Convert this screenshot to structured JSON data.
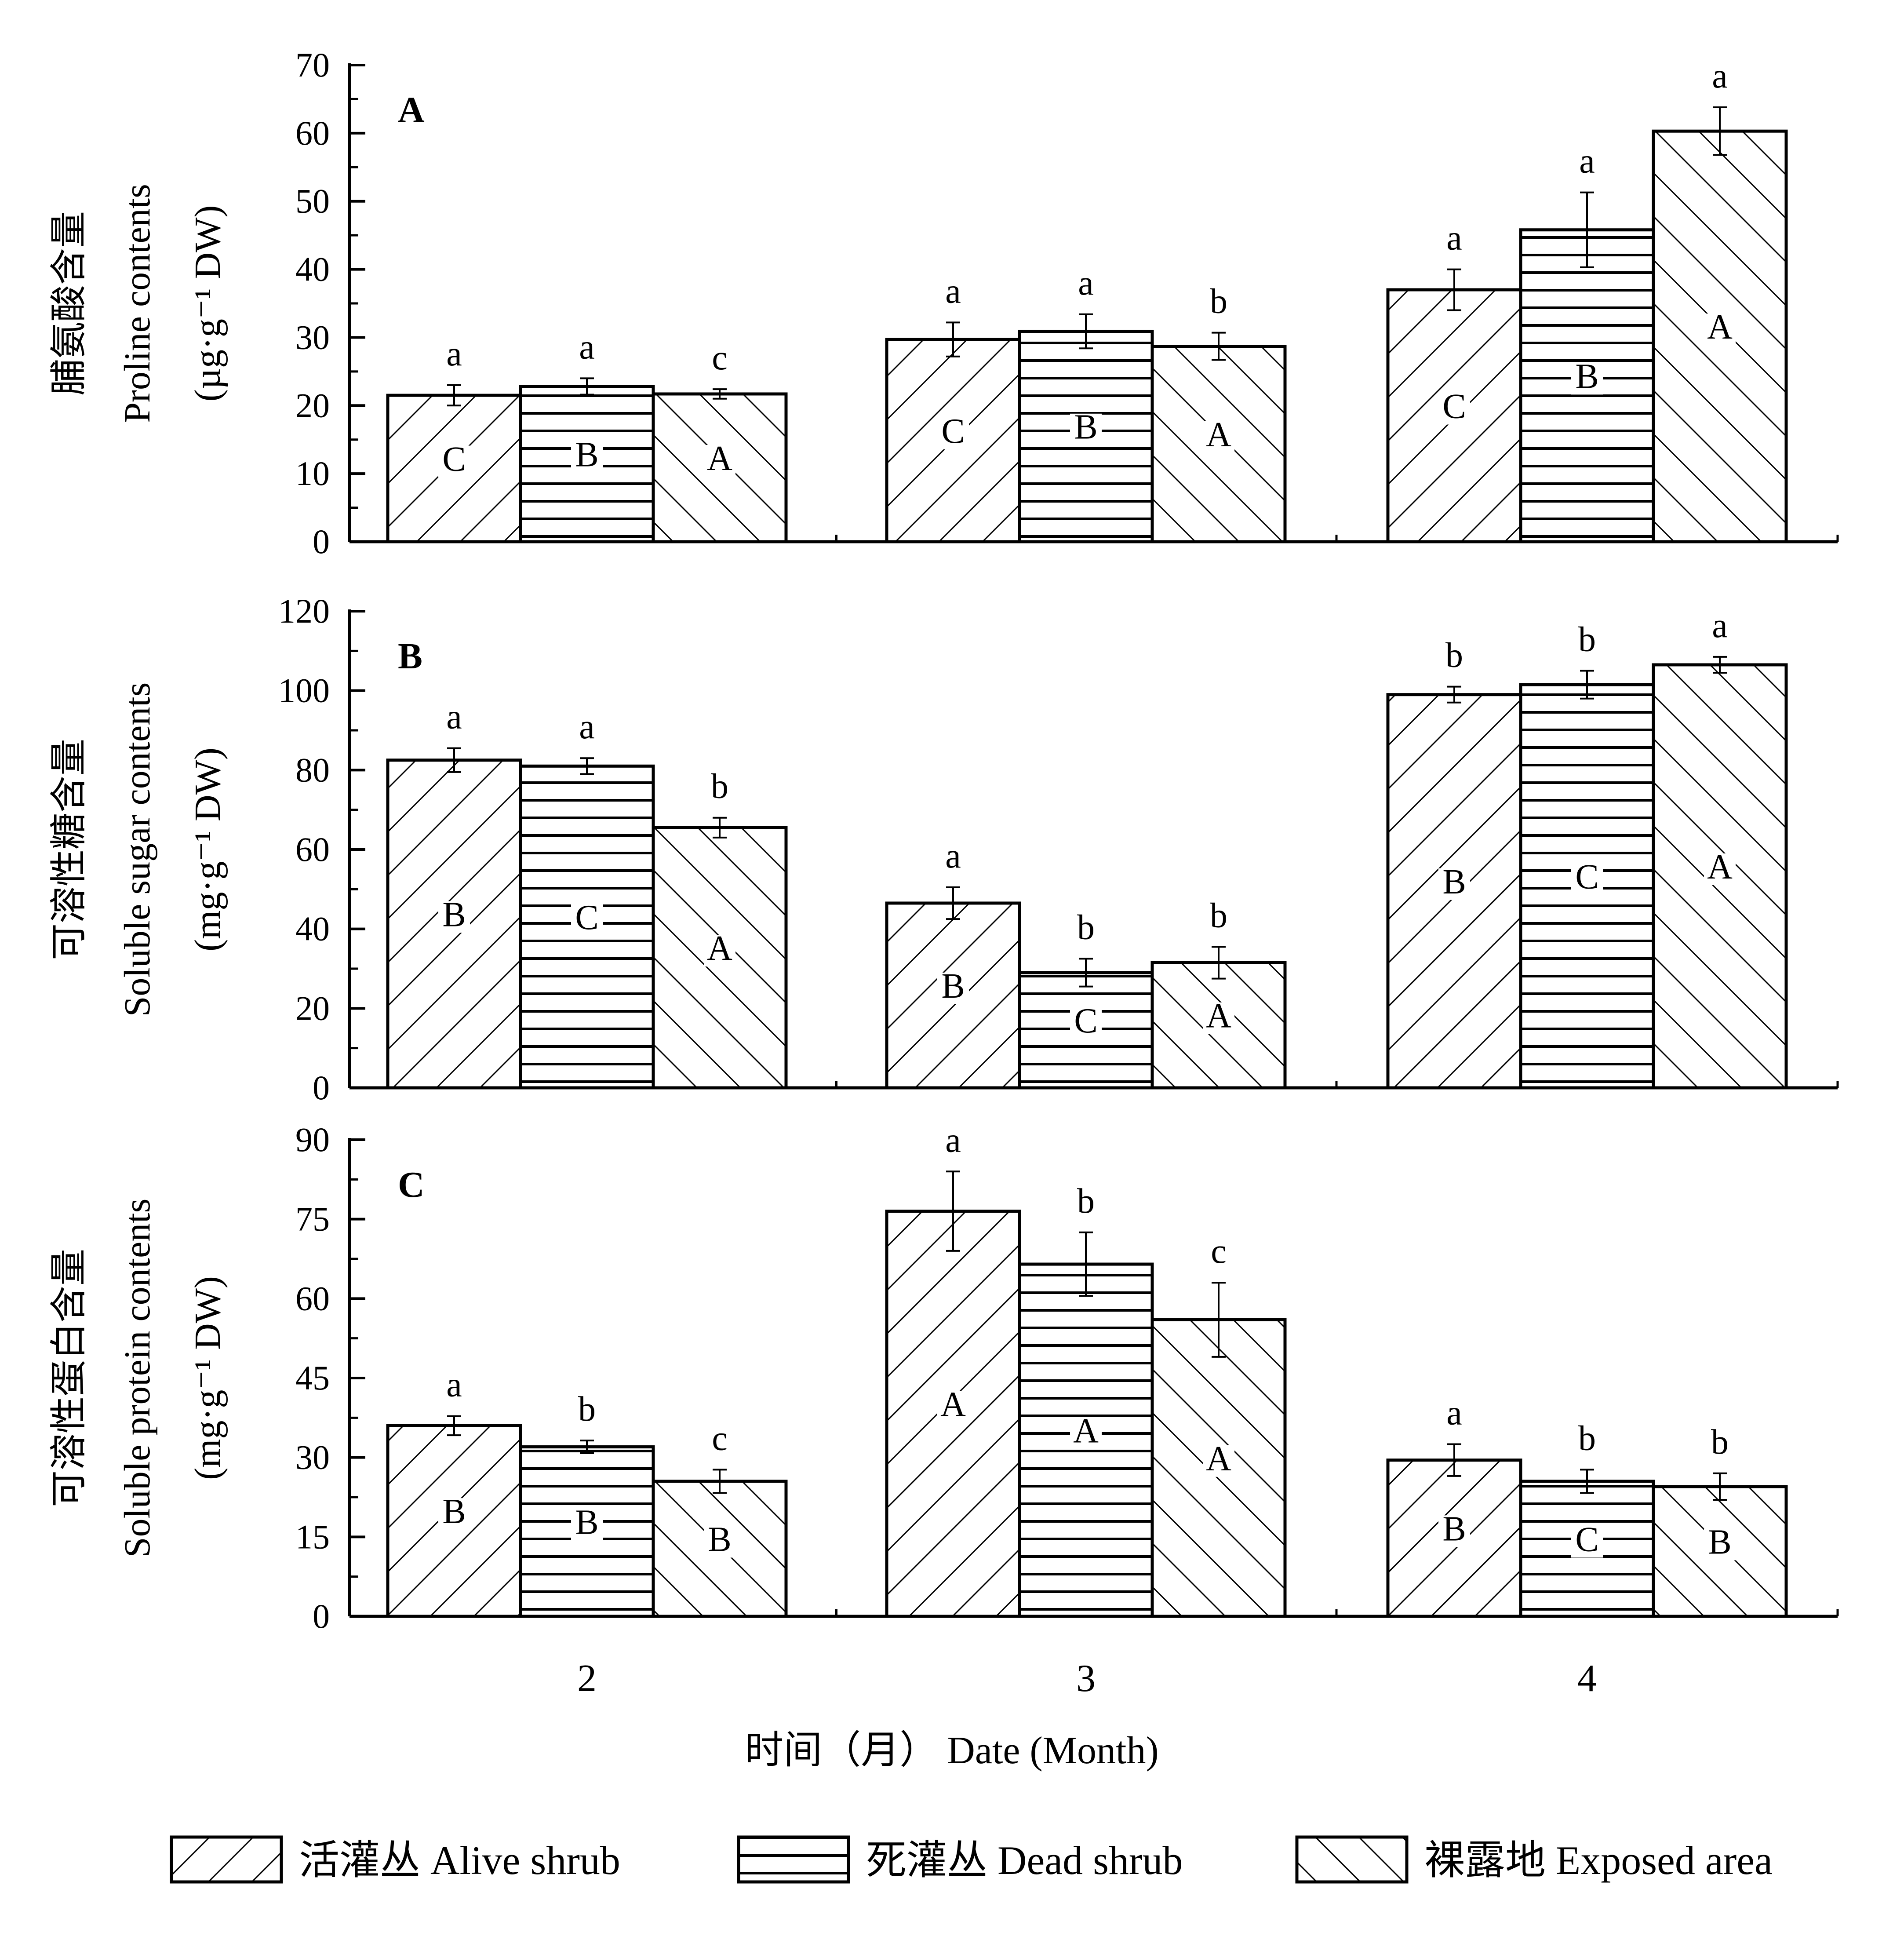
{
  "chart_data": [
    {
      "type": "bar",
      "panel_label": "A",
      "ylabel_cn": "脯氨酸含量",
      "ylabel_en": "Proline contents",
      "ylabel_unit": "(µg·g⁻¹ DW)",
      "ylim": [
        0,
        70
      ],
      "yticks": [
        "0",
        "10",
        "20",
        "30",
        "40",
        "50",
        "60",
        "70"
      ],
      "categories": [
        "2",
        "3",
        "4"
      ],
      "series": [
        {
          "name": "活灌丛 Alive shrub",
          "values": [
            21.5,
            29.7,
            37.0
          ],
          "errors": [
            1.5,
            2.5,
            3.0
          ]
        },
        {
          "name": "死灌丛 Dead shrub",
          "values": [
            22.8,
            30.9,
            45.8
          ],
          "errors": [
            1.2,
            2.5,
            5.5
          ]
        },
        {
          "name": "裸露地 Exposed area",
          "values": [
            21.7,
            28.7,
            60.3
          ],
          "errors": [
            0.7,
            2.0,
            3.5
          ]
        }
      ],
      "sig_lower": [
        [
          "a",
          "a",
          "a"
        ],
        [
          "a",
          "a",
          "a"
        ],
        [
          "c",
          "b",
          "a"
        ]
      ],
      "sig_upper": [
        [
          "C",
          "C",
          "C"
        ],
        [
          "B",
          "B",
          "B"
        ],
        [
          "A",
          "A",
          "A"
        ]
      ]
    },
    {
      "type": "bar",
      "panel_label": "B",
      "ylabel_cn": "可溶性糖含量",
      "ylabel_en": "Soluble sugar contents",
      "ylabel_unit": "(mg·g⁻¹ DW)",
      "ylim": [
        0,
        120
      ],
      "yticks": [
        "0",
        "20",
        "40",
        "60",
        "80",
        "100",
        "120"
      ],
      "categories": [
        "2",
        "3",
        "4"
      ],
      "series": [
        {
          "name": "活灌丛 Alive shrub",
          "values": [
            82.5,
            46.5,
            99.0
          ],
          "errors": [
            3.0,
            4.0,
            2.0
          ]
        },
        {
          "name": "死灌丛 Dead shrub",
          "values": [
            81.0,
            29.0,
            101.5
          ],
          "errors": [
            2.0,
            3.5,
            3.5
          ]
        },
        {
          "name": "裸露地 Exposed area",
          "values": [
            65.5,
            31.5,
            106.5
          ],
          "errors": [
            2.5,
            4.0,
            2.0
          ]
        }
      ],
      "sig_lower": [
        [
          "a",
          "a",
          "b"
        ],
        [
          "a",
          "b",
          "b"
        ],
        [
          "b",
          "b",
          "a"
        ]
      ],
      "sig_upper": [
        [
          "B",
          "B",
          "B"
        ],
        [
          "C",
          "C",
          "C"
        ],
        [
          "A",
          "A",
          "A"
        ]
      ]
    },
    {
      "type": "bar",
      "panel_label": "C",
      "ylabel_cn": "可溶性蛋白含量",
      "ylabel_en": "Soluble protein contents",
      "ylabel_unit": "(mg·g⁻¹ DW)",
      "ylim": [
        0,
        90
      ],
      "yticks": [
        "0",
        "15",
        "30",
        "45",
        "60",
        "75",
        "90"
      ],
      "categories": [
        "2",
        "3",
        "4"
      ],
      "series": [
        {
          "name": "活灌丛 Alive shrub",
          "values": [
            36.0,
            76.5,
            29.5
          ],
          "errors": [
            1.8,
            7.5,
            3.0
          ]
        },
        {
          "name": "死灌丛 Dead shrub",
          "values": [
            32.0,
            66.5,
            25.5
          ],
          "errors": [
            1.2,
            6.0,
            2.2
          ]
        },
        {
          "name": "裸露地 Exposed area",
          "values": [
            25.5,
            56.0,
            24.5
          ],
          "errors": [
            2.2,
            7.0,
            2.5
          ]
        }
      ],
      "sig_lower": [
        [
          "a",
          "a",
          "a"
        ],
        [
          "b",
          "b",
          "b"
        ],
        [
          "c",
          "c",
          "b"
        ]
      ],
      "sig_upper": [
        [
          "B",
          "A",
          "B"
        ],
        [
          "B",
          "A",
          "C"
        ],
        [
          "B",
          "A",
          "B"
        ]
      ]
    }
  ],
  "xaxis": {
    "label_cn": "时间（月）",
    "label_en": "Date (Month)",
    "ticks": [
      "2",
      "3",
      "4"
    ]
  },
  "legend": {
    "position": "bottom",
    "items": [
      {
        "cn": "活灌丛",
        "en": "Alive shrub",
        "pattern": "forward-diagonal"
      },
      {
        "cn": "死灌丛",
        "en": "Dead shrub",
        "pattern": "horizontal"
      },
      {
        "cn": "裸露地",
        "en": "Exposed area",
        "pattern": "backward-diagonal"
      }
    ]
  }
}
